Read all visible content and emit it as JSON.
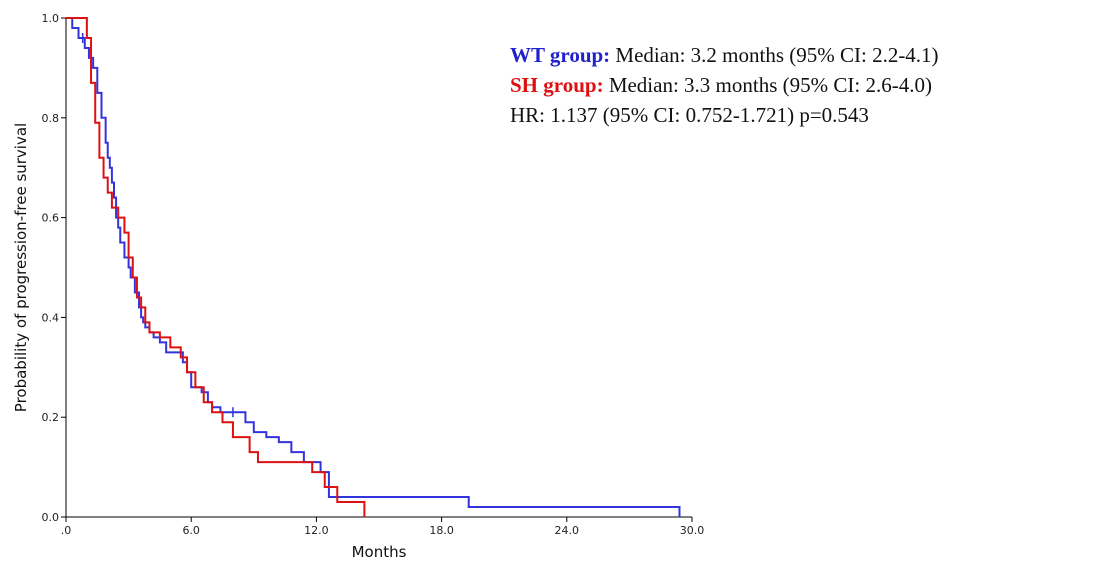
{
  "chart_data": {
    "type": "line",
    "subtype": "kaplan-meier step curves",
    "xlabel": "Months",
    "ylabel": "Probability of progression-free survival",
    "xlim": [
      0,
      30
    ],
    "ylim": [
      0,
      1.0
    ],
    "x_ticks": [
      0,
      6,
      12,
      18,
      24,
      30
    ],
    "x_tick_labels": [
      ".0",
      "6.0",
      "12.0",
      "18.0",
      "24.0",
      "30.0"
    ],
    "y_ticks": [
      0,
      0.2,
      0.4,
      0.6,
      0.8,
      1.0
    ],
    "y_tick_labels": [
      "0.0",
      "0.2",
      "0.4",
      "0.6",
      "0.8",
      "1.0"
    ],
    "grid": false,
    "series": [
      {
        "name": "WT group",
        "color": "#3333dd",
        "x": [
          0,
          0.3,
          0.6,
          0.9,
          1.1,
          1.3,
          1.5,
          1.7,
          1.9,
          2.0,
          2.1,
          2.2,
          2.3,
          2.4,
          2.5,
          2.6,
          2.8,
          3.0,
          3.1,
          3.3,
          3.5,
          3.6,
          3.7,
          3.8,
          4.0,
          4.2,
          4.5,
          4.8,
          5.2,
          5.6,
          5.8,
          6.0,
          6.5,
          6.8,
          7.0,
          7.4,
          8.0,
          8.6,
          9.0,
          9.6,
          10.2,
          10.8,
          11.4,
          12.2,
          12.6,
          19.3,
          29.4
        ],
        "y": [
          1.0,
          0.98,
          0.96,
          0.94,
          0.92,
          0.9,
          0.85,
          0.8,
          0.75,
          0.72,
          0.7,
          0.67,
          0.64,
          0.6,
          0.58,
          0.55,
          0.52,
          0.5,
          0.48,
          0.45,
          0.42,
          0.4,
          0.39,
          0.38,
          0.37,
          0.36,
          0.35,
          0.33,
          0.33,
          0.31,
          0.29,
          0.26,
          0.25,
          0.23,
          0.22,
          0.21,
          0.21,
          0.19,
          0.17,
          0.16,
          0.15,
          0.13,
          0.11,
          0.09,
          0.04,
          0.02,
          0.0
        ],
        "censor_x": [
          0.8,
          8.0
        ]
      },
      {
        "name": "SH group",
        "color": "#dd1111",
        "x": [
          0,
          1.0,
          1.2,
          1.4,
          1.6,
          1.8,
          2.0,
          2.2,
          2.5,
          2.8,
          3.0,
          3.2,
          3.4,
          3.6,
          3.8,
          4.0,
          4.5,
          5.0,
          5.5,
          5.8,
          6.2,
          6.6,
          7.0,
          7.5,
          8.0,
          8.8,
          9.2,
          10.0,
          11.0,
          11.8,
          12.4,
          13.0,
          14.3
        ],
        "y": [
          1.0,
          0.96,
          0.87,
          0.79,
          0.72,
          0.68,
          0.65,
          0.62,
          0.6,
          0.57,
          0.52,
          0.48,
          0.44,
          0.42,
          0.39,
          0.37,
          0.36,
          0.34,
          0.32,
          0.29,
          0.26,
          0.23,
          0.21,
          0.19,
          0.16,
          0.13,
          0.11,
          0.11,
          0.11,
          0.09,
          0.06,
          0.03,
          0.0
        ]
      }
    ]
  },
  "legend": {
    "wt_label": "WT group:",
    "wt_text": " Median: 3.2 months (95% CI: 2.2-4.1)",
    "sh_label": "SH group:",
    "sh_text": " Median: 3.3 months (95% CI: 2.6-4.0)",
    "hr_text": "HR: 1.137 (95% CI: 0.752-1.721) p=0.543",
    "wt_color": "#2222cc",
    "sh_color": "#dd1111"
  }
}
